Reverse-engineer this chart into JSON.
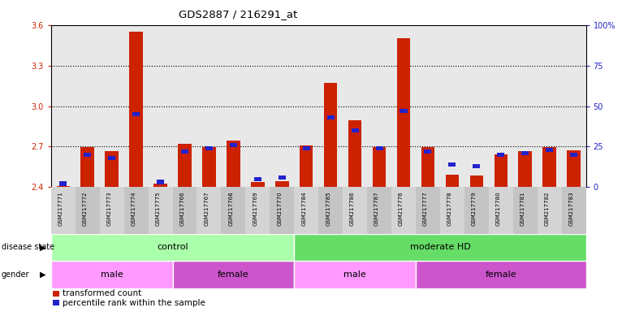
{
  "title": "GDS2887 / 216291_at",
  "samples": [
    "GSM217771",
    "GSM217772",
    "GSM217773",
    "GSM217774",
    "GSM217775",
    "GSM217766",
    "GSM217767",
    "GSM217768",
    "GSM217769",
    "GSM217770",
    "GSM217784",
    "GSM217785",
    "GSM217786",
    "GSM217787",
    "GSM217776",
    "GSM217777",
    "GSM217778",
    "GSM217779",
    "GSM217780",
    "GSM217781",
    "GSM217782",
    "GSM217783"
  ],
  "red_values": [
    2.41,
    2.695,
    2.665,
    3.55,
    2.425,
    2.72,
    2.695,
    2.745,
    2.44,
    2.445,
    2.71,
    3.17,
    2.895,
    2.695,
    3.5,
    2.695,
    2.495,
    2.485,
    2.645,
    2.665,
    2.695,
    2.675
  ],
  "percentile_values": [
    2,
    20,
    18,
    45,
    3,
    22,
    24,
    26,
    5,
    6,
    24,
    43,
    35,
    24,
    47,
    22,
    14,
    13,
    20,
    21,
    23,
    20
  ],
  "ymin": 2.4,
  "ymax": 3.6,
  "yticks_left": [
    2.4,
    2.7,
    3.0,
    3.3,
    3.6
  ],
  "yticks_right": [
    0,
    25,
    50,
    75,
    100
  ],
  "grid_lines": [
    2.7,
    3.0,
    3.3
  ],
  "disease_state_groups": [
    {
      "label": "control",
      "start": 0,
      "end": 10,
      "color": "#aaffaa"
    },
    {
      "label": "moderate HD",
      "start": 10,
      "end": 22,
      "color": "#66dd66"
    }
  ],
  "gender_groups": [
    {
      "label": "male",
      "start": 0,
      "end": 5,
      "color": "#ff99ff"
    },
    {
      "label": "female",
      "start": 5,
      "end": 10,
      "color": "#cc55cc"
    },
    {
      "label": "male",
      "start": 10,
      "end": 15,
      "color": "#ff99ff"
    },
    {
      "label": "female",
      "start": 15,
      "end": 22,
      "color": "#cc55cc"
    }
  ],
  "bar_color": "#cc2200",
  "blue_color": "#2222cc",
  "left_label_color": "#cc2200",
  "right_label_color": "#2222cc",
  "bg_color": "#e8e8e8"
}
